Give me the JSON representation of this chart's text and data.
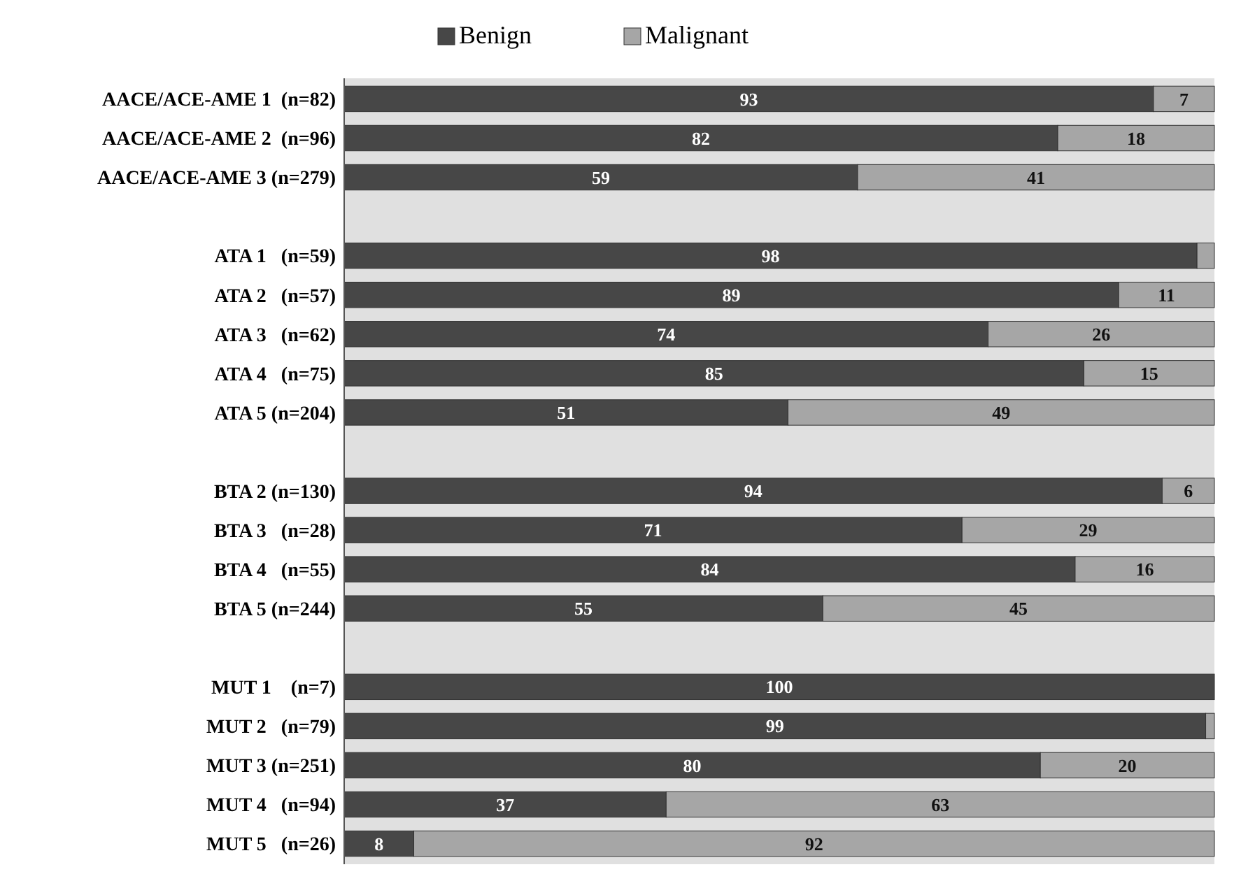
{
  "chart_data": {
    "type": "bar",
    "orientation": "horizontal",
    "stacked": true,
    "legend": "top",
    "xlim": [
      0,
      100
    ],
    "tick_labels": "y",
    "categories": [
      "AACE/ACE-AME 1  (n=82)",
      "AACE/ACE-AME 2  (n=96)",
      "AACE/ACE-AME 3 (n=279)",
      null,
      "ATA 1   (n=59)",
      "ATA 2   (n=57)",
      "ATA 3   (n=62)",
      "ATA 4   (n=75)",
      "ATA 5 (n=204)",
      null,
      "BTA 2 (n=130)",
      "BTA 3   (n=28)",
      "BTA 4   (n=55)",
      "BTA 5 (n=244)",
      null,
      "MUT 1    (n=7)",
      "MUT 2   (n=79)",
      "MUT 3 (n=251)",
      "MUT 4   (n=94)",
      "MUT 5   (n=26)"
    ],
    "series": [
      {
        "name": "Benign",
        "color": "#474747",
        "values": [
          93,
          82,
          59,
          null,
          98,
          89,
          74,
          85,
          51,
          null,
          94,
          71,
          84,
          55,
          null,
          100,
          99,
          80,
          37,
          8
        ],
        "value_labels": [
          "93",
          "82",
          "59",
          null,
          "98",
          "89",
          "74",
          "85",
          "51",
          null,
          "94",
          "71",
          "84",
          "55",
          null,
          "100",
          "99",
          "80",
          "37",
          "8"
        ]
      },
      {
        "name": "Malignant",
        "color": "#a6a6a6",
        "values": [
          7,
          18,
          41,
          null,
          2,
          11,
          26,
          15,
          49,
          null,
          6,
          29,
          16,
          45,
          null,
          0,
          1,
          20,
          63,
          92
        ],
        "value_labels": [
          "7",
          "18",
          "41",
          null,
          null,
          "11",
          "26",
          "15",
          "49",
          null,
          "6",
          "29",
          "16",
          "45",
          null,
          null,
          null,
          "20",
          "63",
          "92"
        ]
      }
    ]
  }
}
